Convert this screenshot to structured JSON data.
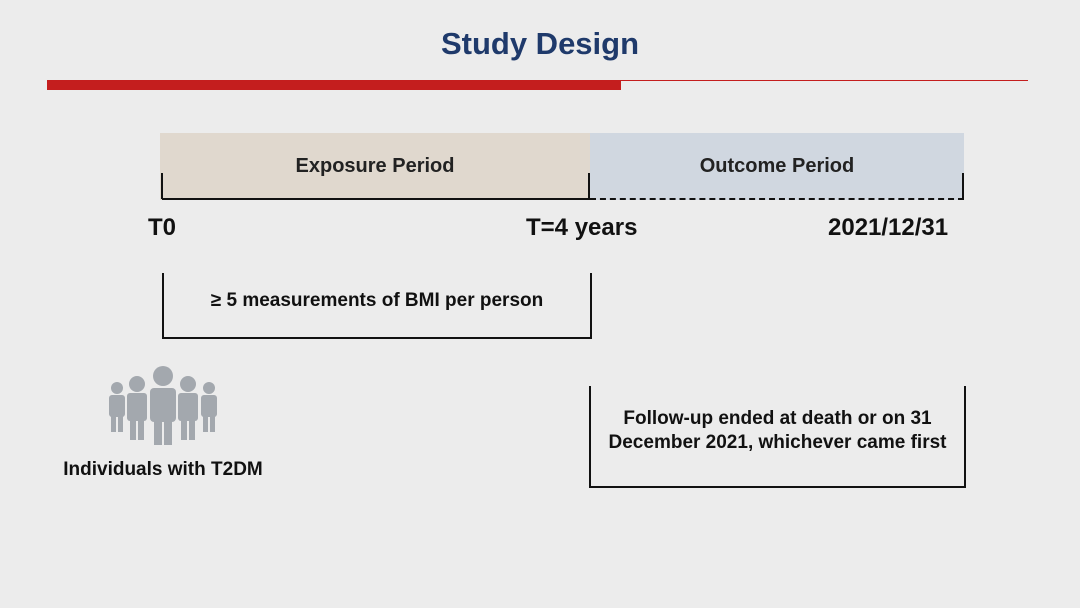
{
  "slide": {
    "title": "Study Design"
  },
  "periods": {
    "exposure_label": "Exposure Period",
    "outcome_label": "Outcome Period"
  },
  "timeline": {
    "start_label": "T0",
    "middle_label": "T=4 years",
    "end_label": "2021/12/31"
  },
  "notes": {
    "bmi_requirement": "≥ 5 measurements of BMI per person",
    "follow_up": "Follow-up ended at death or on 31 December 2021, whichever came first"
  },
  "population": {
    "icon": "people-group-icon",
    "label": "Individuals with T2DM"
  },
  "colors": {
    "title": "#1f3a6b",
    "accent_rule": "#c41e1e",
    "exposure_fill": "#e0d8ce",
    "outcome_fill": "#d0d7e0",
    "icon_gray": "#a3a8ae"
  }
}
